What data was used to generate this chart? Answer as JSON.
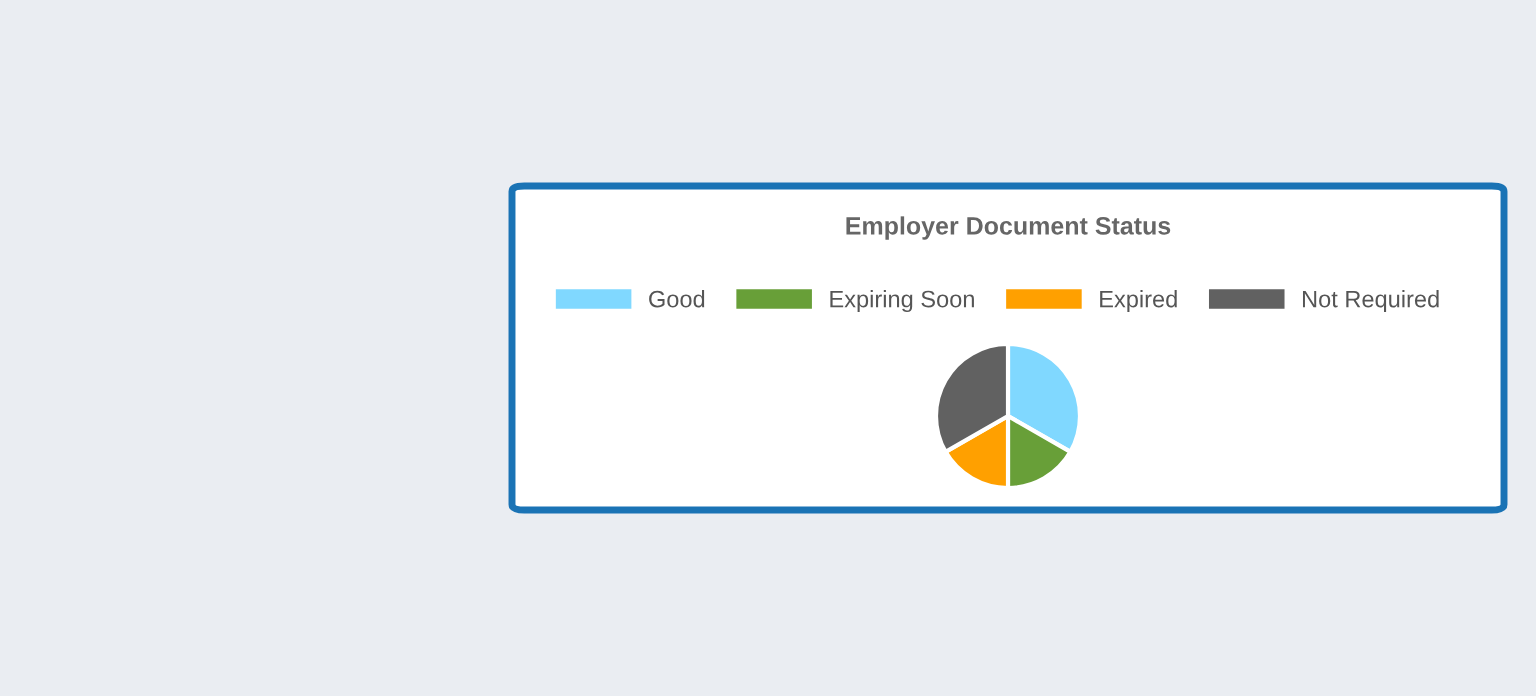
{
  "chart_data": {
    "type": "pie",
    "title": "Employer Document Status",
    "categories": [
      "Good",
      "Expiring Soon",
      "Expired",
      "Not Required"
    ],
    "values": [
      33.3,
      16.7,
      16.7,
      33.3
    ],
    "colors": [
      "#80d8ff",
      "#689f38",
      "#ffa000",
      "#616161"
    ],
    "legend": "top"
  }
}
